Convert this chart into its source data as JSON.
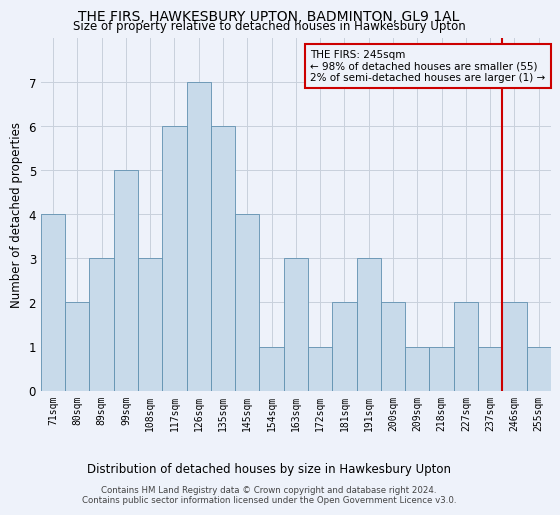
{
  "title": "THE FIRS, HAWKESBURY UPTON, BADMINTON, GL9 1AL",
  "subtitle": "Size of property relative to detached houses in Hawkesbury Upton",
  "xlabel_bottom": "Distribution of detached houses by size in Hawkesbury Upton",
  "ylabel": "Number of detached properties",
  "bar_labels": [
    "71sqm",
    "80sqm",
    "89sqm",
    "99sqm",
    "108sqm",
    "117sqm",
    "126sqm",
    "135sqm",
    "145sqm",
    "154sqm",
    "163sqm",
    "172sqm",
    "181sqm",
    "191sqm",
    "200sqm",
    "209sqm",
    "218sqm",
    "227sqm",
    "237sqm",
    "246sqm",
    "255sqm"
  ],
  "bar_values": [
    4,
    2,
    3,
    5,
    3,
    6,
    7,
    6,
    4,
    1,
    3,
    1,
    2,
    3,
    2,
    1,
    1,
    2,
    1,
    2,
    1
  ],
  "bar_color": "#c8daea",
  "bar_edge_color": "#6090b0",
  "grid_color": "#c8d0dc",
  "background_color": "#eef2fa",
  "red_line_index": 19,
  "red_line_color": "#cc0000",
  "annotation_text": "THE FIRS: 245sqm\n← 98% of detached houses are smaller (55)\n2% of semi-detached houses are larger (1) →",
  "footnote": "Contains HM Land Registry data © Crown copyright and database right 2024.\nContains public sector information licensed under the Open Government Licence v3.0.",
  "ylim": [
    0,
    8
  ],
  "yticks": [
    0,
    1,
    2,
    3,
    4,
    5,
    6,
    7,
    8
  ]
}
